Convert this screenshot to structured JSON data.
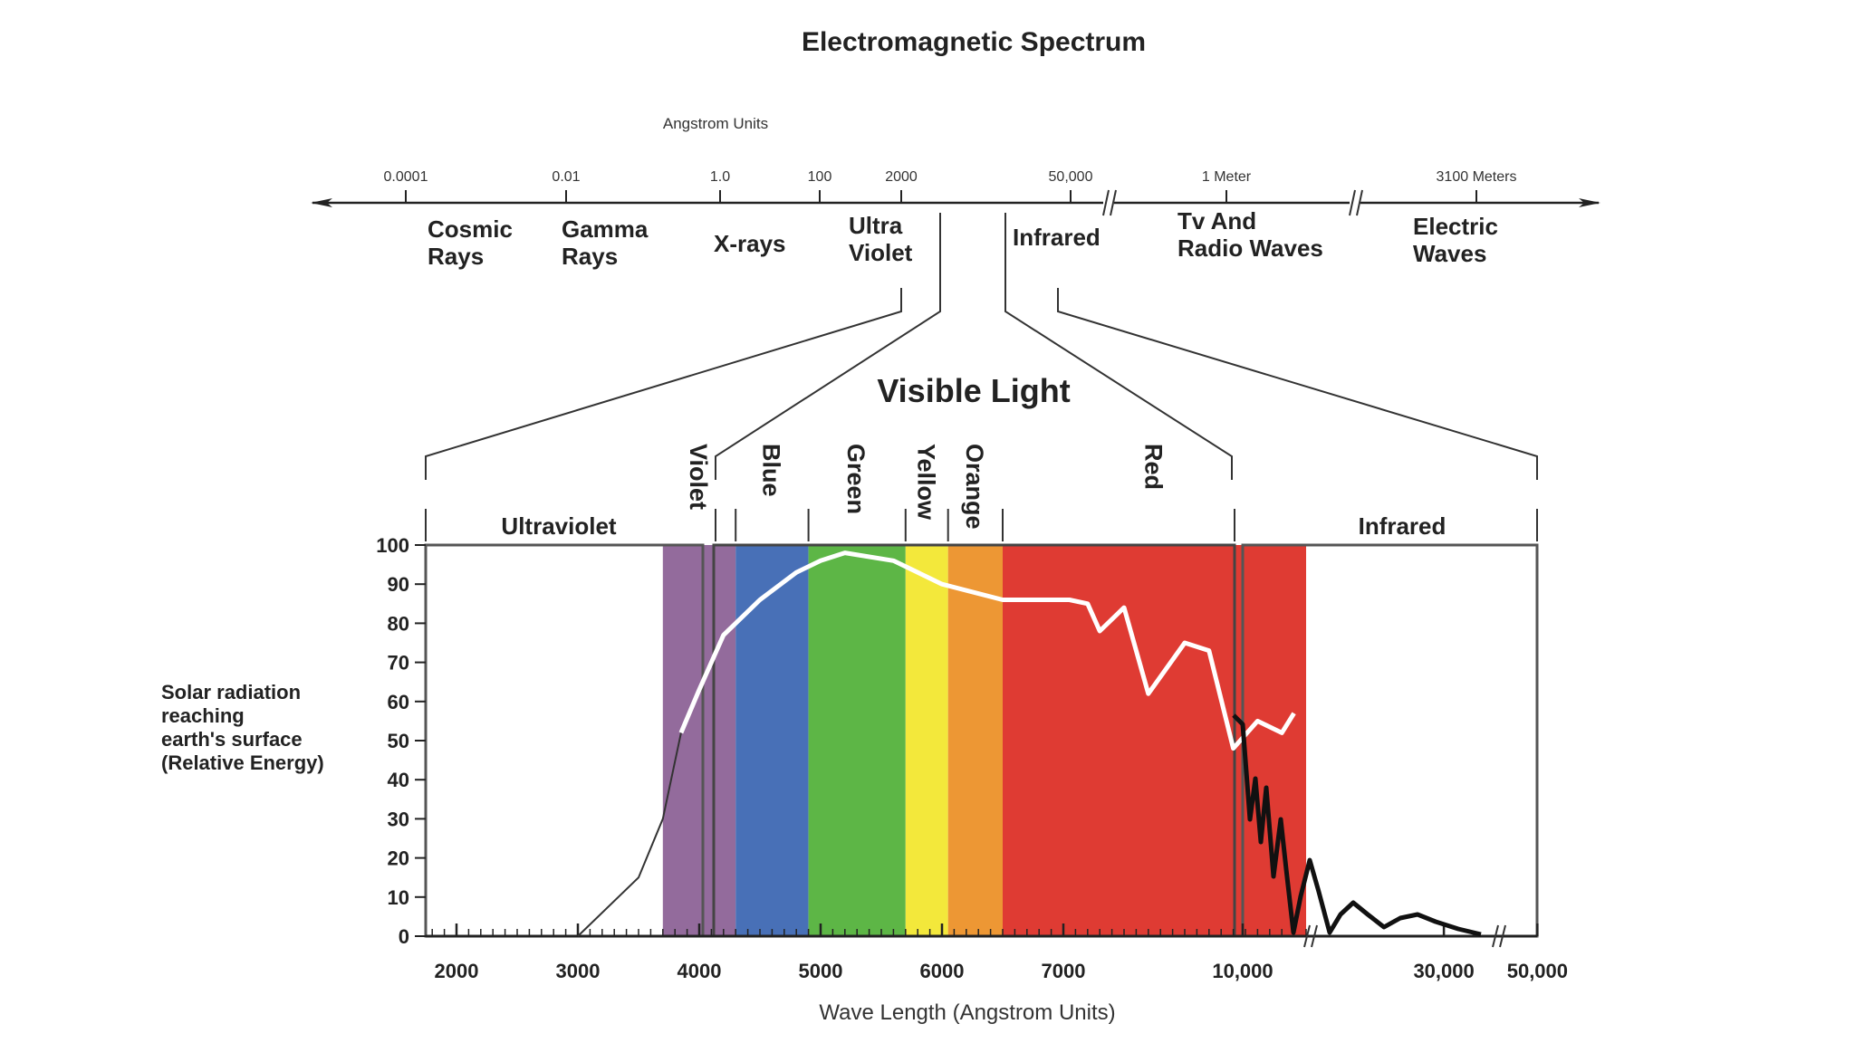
{
  "title": "Electromagnetic Spectrum",
  "spectrum": {
    "unit_label": "Angstrom Units",
    "ticks": [
      "0.0001",
      "0.01",
      "1.0",
      "100",
      "2000",
      "50,000",
      "1 Meter",
      "3100 Meters"
    ],
    "regions": [
      {
        "line1": "Cosmic",
        "line2": "Rays"
      },
      {
        "line1": "Gamma",
        "line2": "Rays"
      },
      {
        "line1": "X-rays",
        "line2": ""
      },
      {
        "line1": "Ultra",
        "line2": "Violet"
      },
      {
        "line1": "Infrared",
        "line2": ""
      },
      {
        "line1": "Tv And",
        "line2": "Radio Waves"
      },
      {
        "line1": "Electric",
        "line2": "Waves"
      }
    ]
  },
  "visible_light_label": "Visible Light",
  "sections": {
    "ultraviolet": "Ultraviolet",
    "infrared": "Infrared"
  },
  "bands": [
    {
      "name": "Violet",
      "from": 3700,
      "to": 4300,
      "color": "#936b9c"
    },
    {
      "name": "Blue",
      "from": 4300,
      "to": 4900,
      "color": "#4870b7"
    },
    {
      "name": "Green",
      "from": 4900,
      "to": 5700,
      "color": "#5db646"
    },
    {
      "name": "Yellow",
      "from": 5700,
      "to": 6050,
      "color": "#f3e83b"
    },
    {
      "name": "Orange",
      "from": 6050,
      "to": 6500,
      "color": "#ed9734"
    },
    {
      "name": "Red",
      "from": 6500,
      "to": 9000,
      "color": "#df3b33"
    }
  ],
  "chart_data": {
    "type": "line",
    "ylabel_lines": [
      "Solar radiation",
      "reaching",
      "earth's surface",
      "(Relative Energy)"
    ],
    "xlabel": "Wave Length (Angstrom Units)",
    "y_ticks": [
      "100",
      "90",
      "80",
      "70",
      "60",
      "50",
      "40",
      "30",
      "20",
      "10",
      "0"
    ],
    "ylim": [
      0,
      100
    ],
    "x_ticks": [
      "2000",
      "3000",
      "4000",
      "5000",
      "6000",
      "7000",
      "10,000",
      "30,000",
      "50,000"
    ],
    "series": [
      {
        "x": [
          3000,
          3500,
          3700,
          3850,
          4000,
          4200,
          4500,
          4800,
          5000,
          5200,
          5600,
          6000,
          6500,
          7000,
          7050,
          7200,
          7300,
          7500,
          7700,
          8000,
          8200,
          8400,
          8600,
          8800,
          8900
        ],
        "y": [
          0,
          15,
          30,
          52,
          63,
          77,
          86,
          93,
          96,
          98,
          96,
          90,
          86,
          86,
          86,
          85,
          78,
          84,
          62,
          75,
          73,
          48,
          55,
          52,
          57
        ]
      }
    ]
  }
}
